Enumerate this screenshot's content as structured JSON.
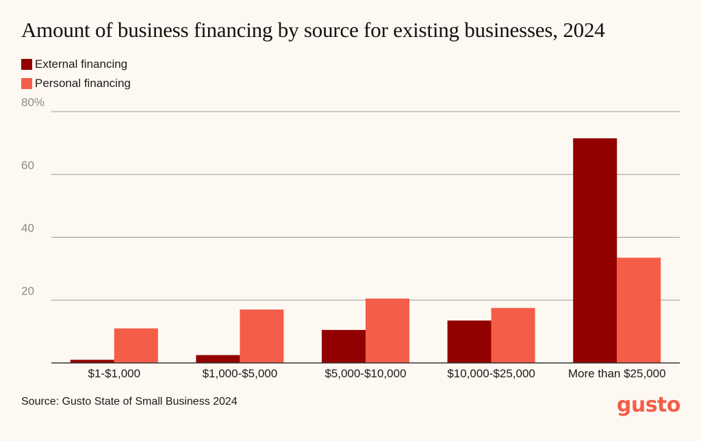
{
  "colors": {
    "external": "#930000",
    "personal": "#F45D48",
    "gridline": "#9a9a9a",
    "axis": "#333333"
  },
  "footer": {
    "source": "Source: Gusto State of Small Business 2024",
    "logo": "gusto"
  },
  "chart_data": {
    "type": "bar",
    "title": "Amount of business financing by source for existing businesses, 2024",
    "xlabel": "",
    "ylabel": "",
    "categories": [
      "$1-$1,000",
      "$1,000-$5,000",
      "$5,000-$10,000",
      "$10,000-$25,000",
      "More than $25,000"
    ],
    "series": [
      {
        "name": "External financing",
        "values": [
          1,
          2.5,
          10.5,
          13.5,
          71.5
        ]
      },
      {
        "name": "Personal financing",
        "values": [
          11,
          17,
          20.5,
          17.5,
          33.5
        ]
      }
    ],
    "ylim": [
      0,
      80
    ],
    "yticks": [
      0,
      20,
      40,
      60,
      80
    ],
    "ytick_labels": [
      "",
      "20",
      "40",
      "60",
      "80%"
    ],
    "grid": true,
    "legend": "top-left"
  }
}
